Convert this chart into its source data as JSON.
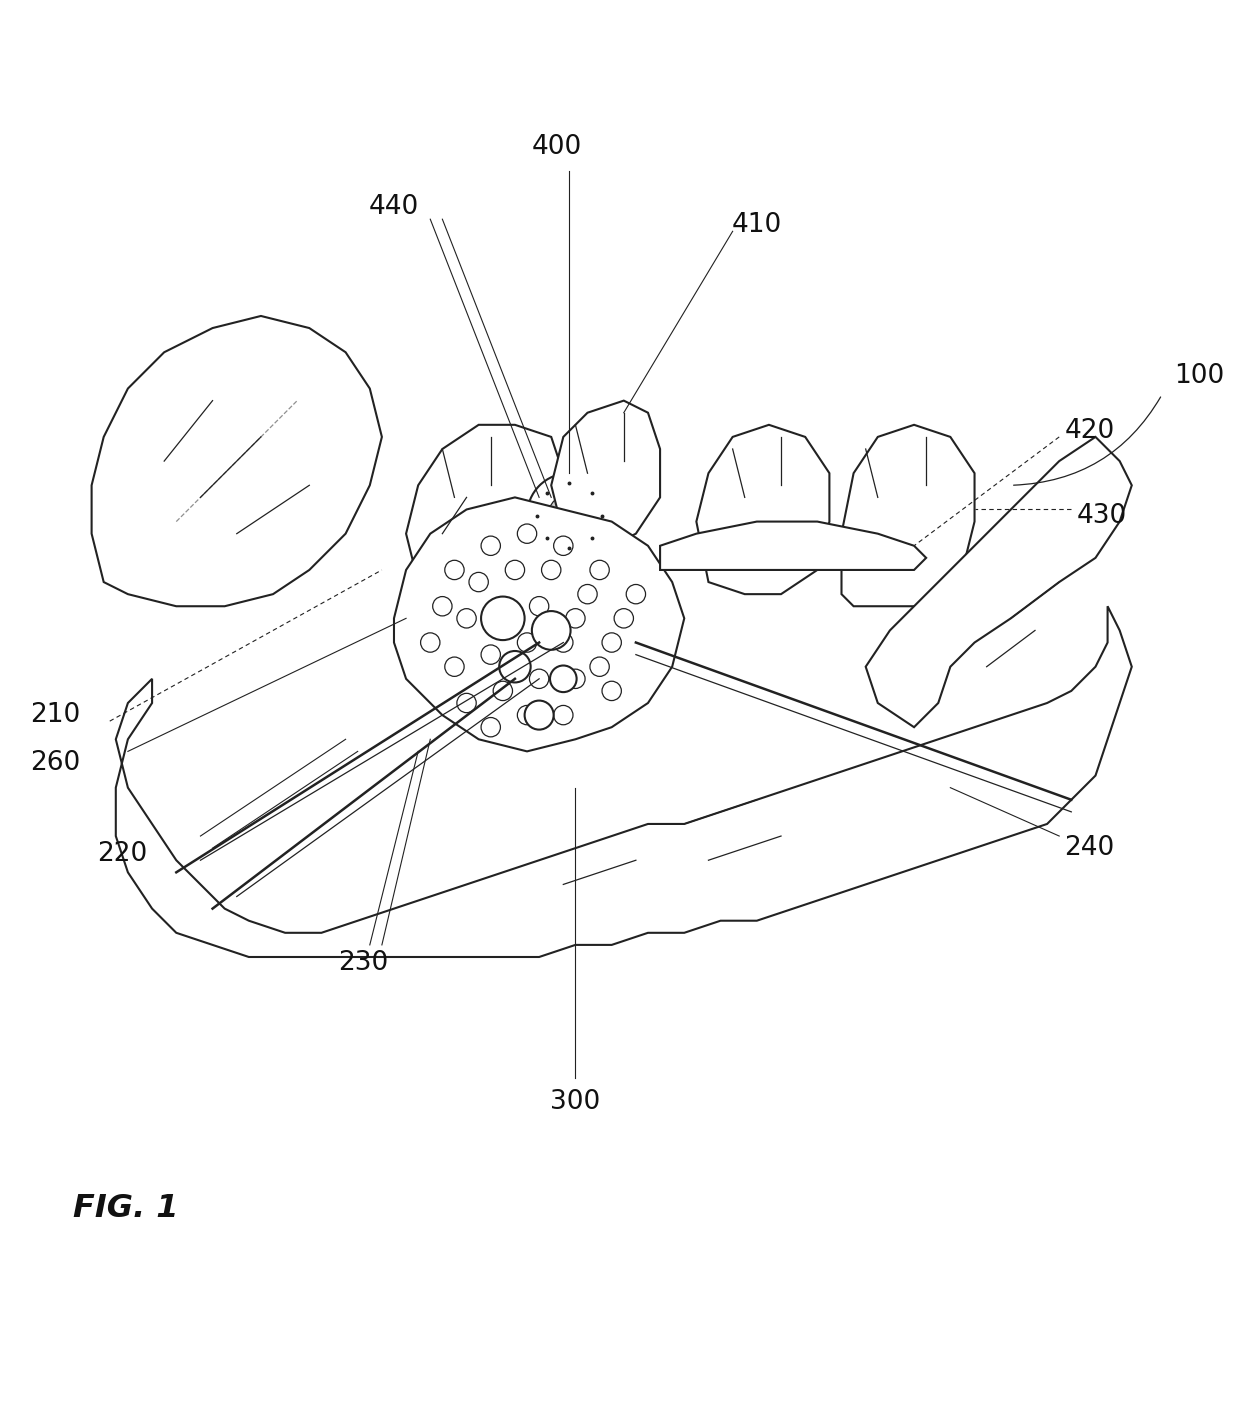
{
  "bg_color": "#ffffff",
  "line_color": "#222222",
  "line_width": 1.5,
  "figsize": [
    12.4,
    14.06
  ],
  "dpi": 100
}
